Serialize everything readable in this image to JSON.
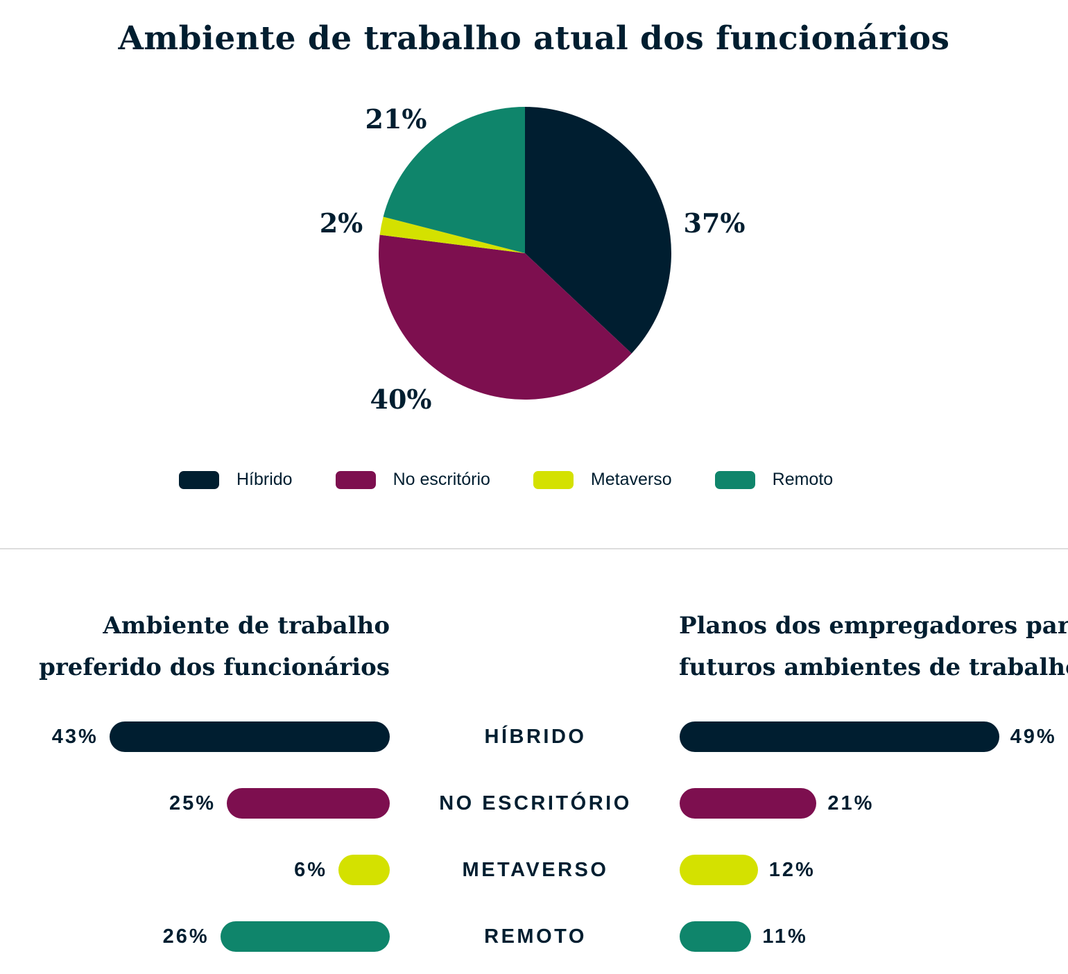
{
  "chart_data": [
    {
      "type": "pie",
      "title": "Ambiente de trabalho atual dos funcionários",
      "slices": [
        {
          "name": "Híbrido",
          "value": 37,
          "label": "37%",
          "color": "#001e30"
        },
        {
          "name": "No escritório",
          "value": 40,
          "label": "40%",
          "color": "#7d0f4f"
        },
        {
          "name": "Metaverso",
          "value": 2,
          "label": "2%",
          "color": "#d4e100"
        },
        {
          "name": "Remoto",
          "value": 21,
          "label": "21%",
          "color": "#0f856b"
        }
      ],
      "legend_position": "bottom"
    },
    {
      "type": "bar",
      "orientation": "horizontal",
      "title_lines": [
        "Ambiente de trabalho",
        "preferido dos funcionários"
      ],
      "categories": [
        "HÍBRIDO",
        "NO ESCRITÓRIO",
        "METAVERSO",
        "REMOTO"
      ],
      "values": [
        43,
        25,
        6,
        26
      ],
      "labels": [
        "43%",
        "25%",
        "6%",
        "26%"
      ]
    },
    {
      "type": "bar",
      "orientation": "horizontal",
      "title_lines": [
        "Planos dos empregadores para",
        "futuros ambientes de trabalho"
      ],
      "categories": [
        "HÍBRIDO",
        "NO ESCRITÓRIO",
        "METAVERSO",
        "REMOTO"
      ],
      "values": [
        49,
        21,
        12,
        11
      ],
      "labels": [
        "49%",
        "21%",
        "12%",
        "11%"
      ]
    }
  ]
}
